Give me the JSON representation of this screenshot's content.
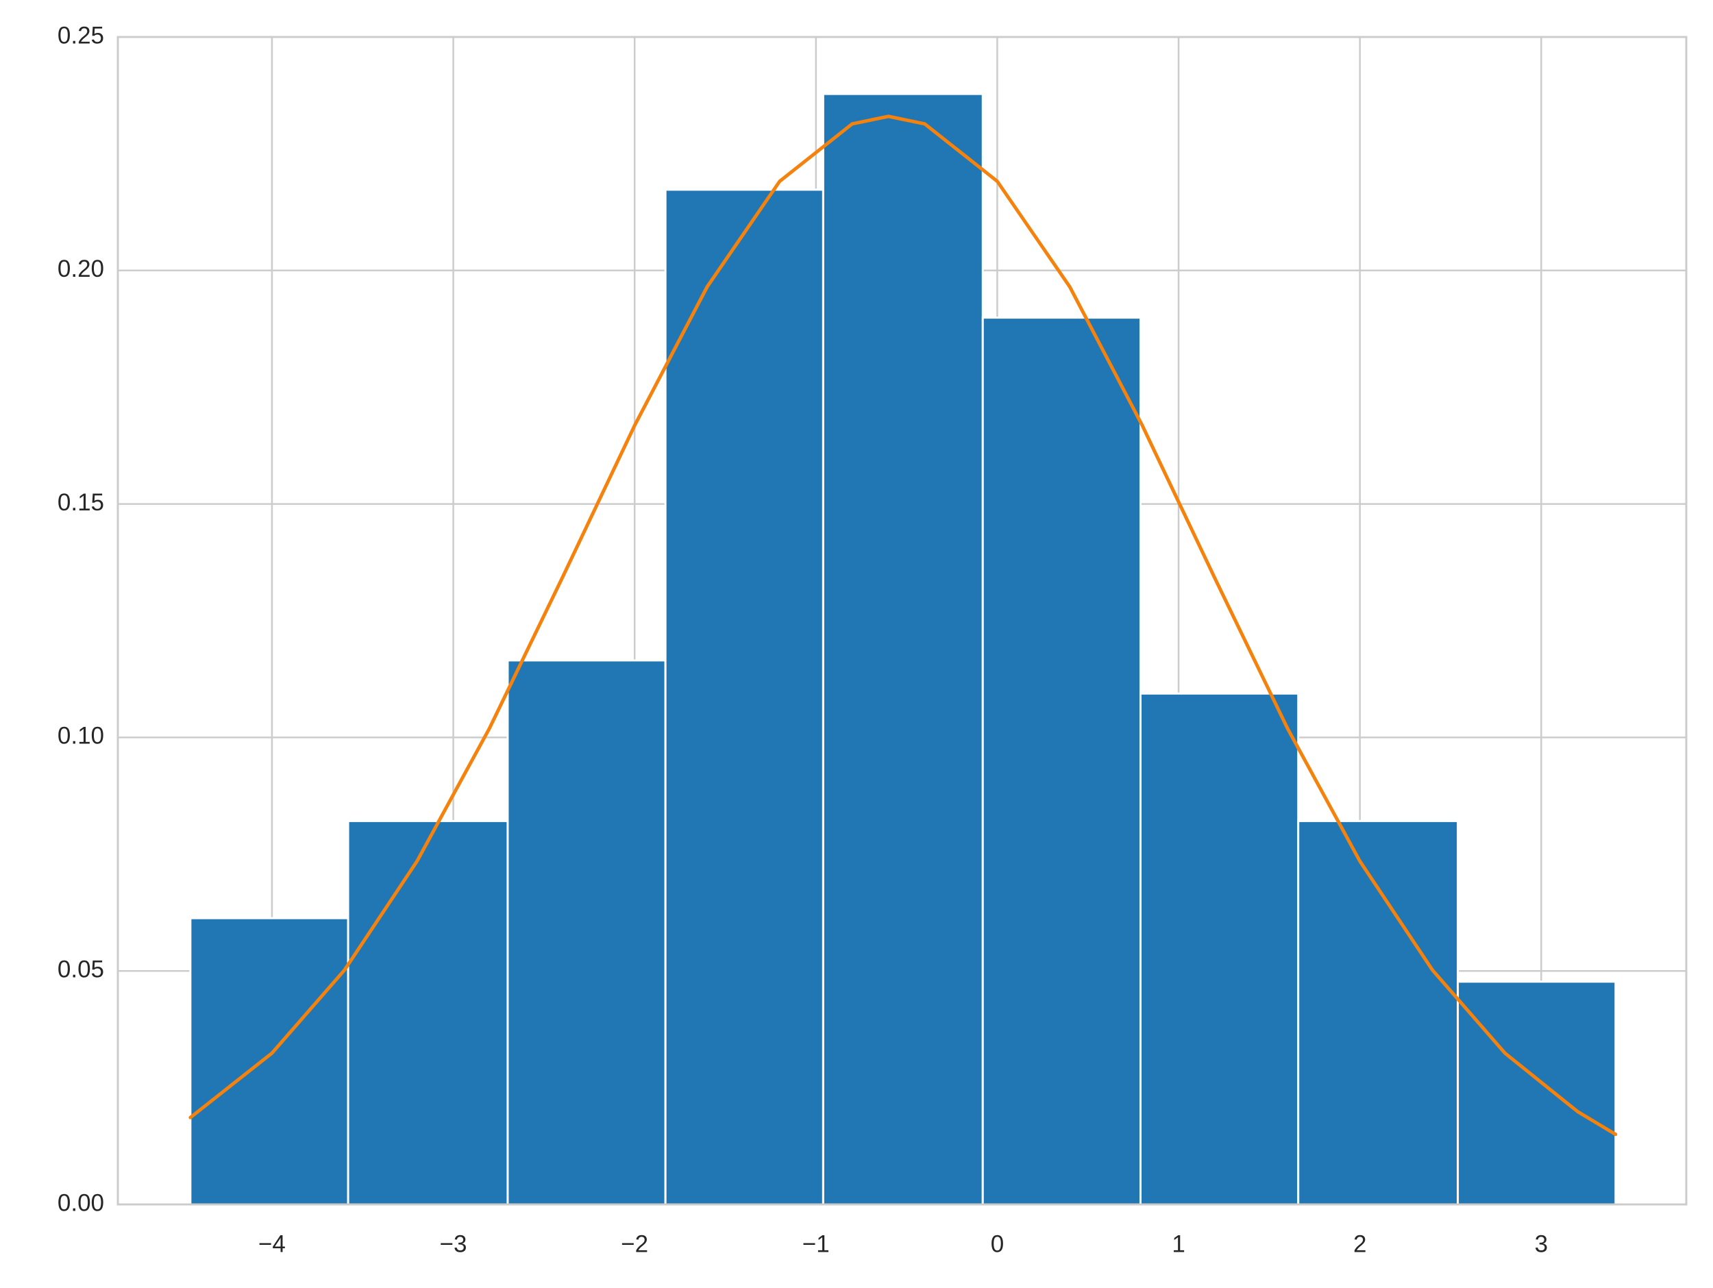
{
  "chart_data": {
    "type": "histogram",
    "bins": [
      -4.45,
      -3.58,
      -2.7,
      -1.83,
      -0.96,
      -0.08,
      0.79,
      1.66,
      2.54,
      3.41
    ],
    "values": [
      0.0613,
      0.0821,
      0.1165,
      0.2173,
      0.2378,
      0.1899,
      0.1094,
      0.0821,
      0.0477
    ],
    "color": "#2077b4",
    "lines": [
      {
        "type": "line",
        "color": "#f5820d",
        "x": [
          -4.45,
          -4.0,
          -3.6,
          -3.2,
          -2.8,
          -2.4,
          -2.0,
          -1.6,
          -1.2,
          -0.8,
          -0.6,
          -0.4,
          0.0,
          0.4,
          0.8,
          1.2,
          1.6,
          2.0,
          2.4,
          2.8,
          3.2,
          3.41
        ],
        "values": [
          0.0186,
          0.0324,
          0.0502,
          0.0735,
          0.102,
          0.1341,
          0.1668,
          0.1965,
          0.2191,
          0.2314,
          0.233,
          0.2314,
          0.2191,
          0.1965,
          0.1668,
          0.1341,
          0.102,
          0.0735,
          0.0502,
          0.0324,
          0.0199,
          0.015
        ]
      }
    ],
    "xlim": [
      -4.85,
      3.8
    ],
    "ylim": [
      0,
      0.25
    ],
    "xticks": [
      {
        "value": -4,
        "label": "−4"
      },
      {
        "value": -3,
        "label": "−3"
      },
      {
        "value": -2,
        "label": "−2"
      },
      {
        "value": -1,
        "label": "−1"
      },
      0,
      1,
      2,
      3
    ],
    "yticks": [
      {
        "value": 0,
        "label": "0.00"
      },
      0.05,
      {
        "value": 0.1,
        "label": "0.10"
      },
      0.15,
      {
        "value": 0.2,
        "label": "0.20"
      },
      0.25
    ],
    "grid": true
  }
}
